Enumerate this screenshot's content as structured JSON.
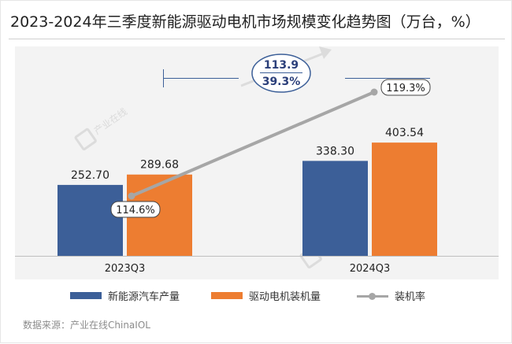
{
  "title": "2023-2024年三季度新能源驱动电机市场规模变化趋势图（万台，%）",
  "source": "数据来源：产业在线ChinaIOL",
  "watermark": "产业在线",
  "colors": {
    "blue": "#3c5f98",
    "orange": "#ed7d31",
    "gray_line": "#a6a6a6",
    "annotation_text": "#2b3f7a",
    "background": "#f3f3f3"
  },
  "chart_data": {
    "type": "bar",
    "categories": [
      "2023Q3",
      "2024Q3"
    ],
    "series": [
      {
        "name": "新能源汽车产量",
        "type": "bar",
        "values": [
          252.7,
          338.3
        ],
        "labels": [
          "252.70",
          "338.30"
        ],
        "color": "#3c5f98"
      },
      {
        "name": "驱动电机装机量",
        "type": "bar",
        "values": [
          289.68,
          403.54
        ],
        "labels": [
          "289.68",
          "403.54"
        ],
        "color": "#ed7d31"
      },
      {
        "name": "装机率",
        "type": "line",
        "values": [
          114.6,
          119.3
        ],
        "labels": [
          "114.6%",
          "119.3%"
        ],
        "color": "#a6a6a6"
      }
    ],
    "annotation": {
      "values": [
        "113.9",
        "39.3%"
      ]
    },
    "legend_position": "bottom",
    "grid": false
  }
}
